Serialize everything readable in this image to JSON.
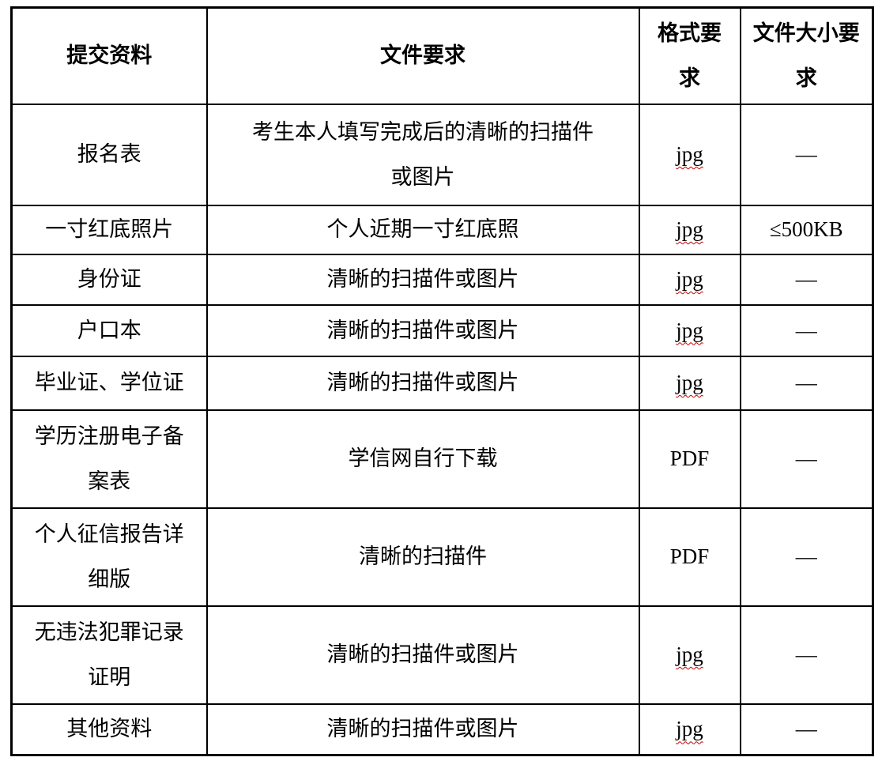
{
  "page": {
    "background": "#ffffff",
    "description": "材料提交要求表"
  },
  "colors": {
    "border": "#000000",
    "text": "#000000",
    "spellcheck_underline": "#cc0000"
  },
  "table": {
    "columns": [
      {
        "label": "提交资料"
      },
      {
        "label": "文件要求"
      },
      {
        "label": "格式要\n求"
      },
      {
        "label": "文件大小要\n求"
      }
    ],
    "rows": [
      {
        "material": "报名表",
        "requirement": "考生本人填写完成后的清晰的扫描件\n或图片",
        "format": "jpg",
        "size": "—"
      },
      {
        "material": "一寸红底照片",
        "requirement": "个人近期一寸红底照",
        "format": "jpg",
        "size": "≤500KB"
      },
      {
        "material": "身份证",
        "requirement": "清晰的扫描件或图片",
        "format": "jpg",
        "size": "—"
      },
      {
        "material": "户口本",
        "requirement": "清晰的扫描件或图片",
        "format": "jpg",
        "size": "—"
      },
      {
        "material": "毕业证、学位证",
        "requirement": "清晰的扫描件或图片",
        "format": "jpg",
        "size": "—"
      },
      {
        "material": "学历注册电子备\n案表",
        "requirement": "学信网自行下载",
        "format": "PDF",
        "size": "—"
      },
      {
        "material": "个人征信报告详\n细版",
        "requirement": "清晰的扫描件",
        "format": "PDF",
        "size": "—"
      },
      {
        "material": "无违法犯罪记录\n证明",
        "requirement": "清晰的扫描件或图片",
        "format": "jpg",
        "size": "—"
      },
      {
        "material": "其他资料",
        "requirement": "清晰的扫描件或图片",
        "format": "jpg",
        "size": "—"
      }
    ]
  }
}
